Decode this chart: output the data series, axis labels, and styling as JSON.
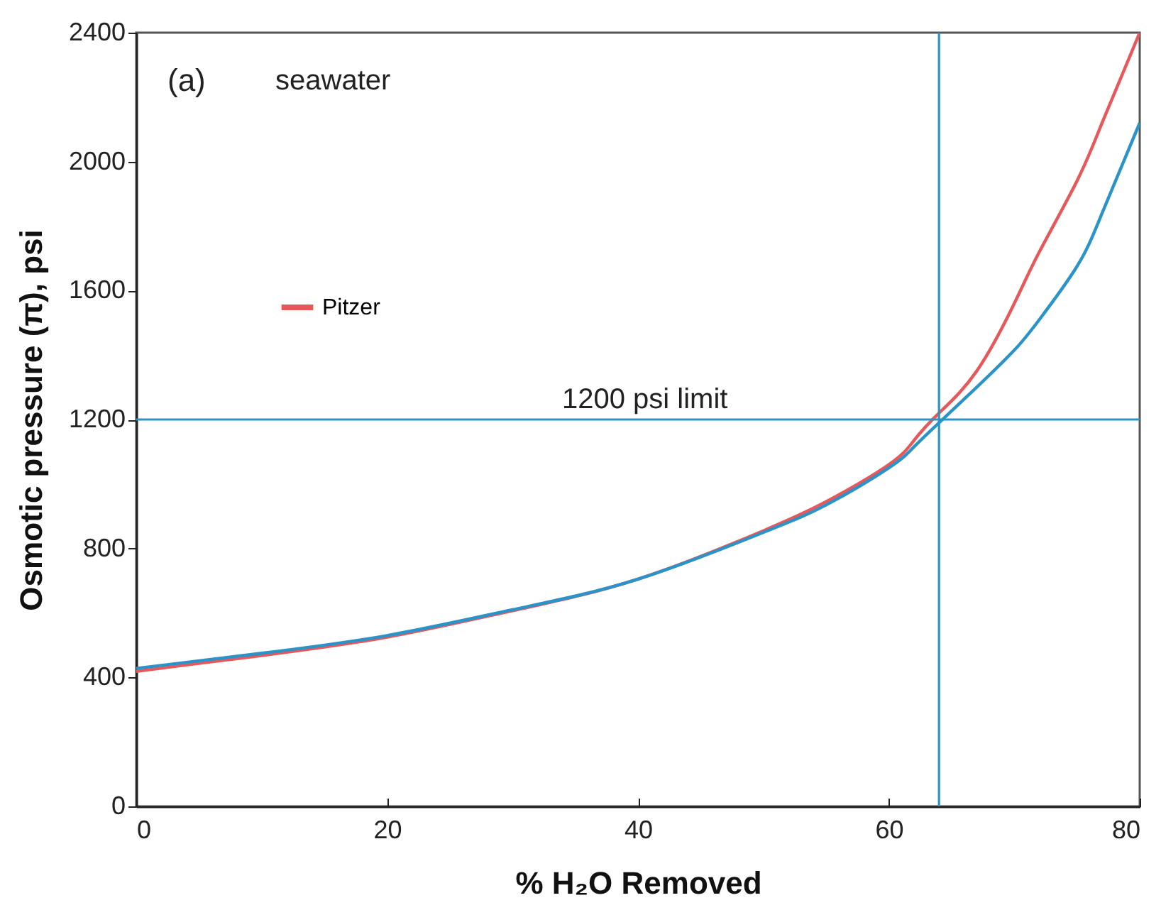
{
  "chart_data": {
    "type": "line",
    "xlabel": "% H₂O Removed",
    "ylabel": "Osmotic pressure (π), psi",
    "annotations": [
      "(a)",
      "seawater"
    ],
    "x": [
      0,
      10,
      20,
      30,
      40,
      50,
      55,
      60,
      62,
      64,
      67,
      70,
      72,
      75,
      77,
      80
    ],
    "series": [
      {
        "name": "Pitzer",
        "color": "#e8575a",
        "values": [
          419,
          468,
          525,
          607,
          705,
          855,
          945,
          1060,
          1135,
          1220,
          1350,
          1560,
          1720,
          1940,
          2120,
          2400
        ]
      },
      {
        "color": "#2a93c8",
        "values": [
          428,
          475,
          530,
          610,
          705,
          850,
          935,
          1050,
          1115,
          1190,
          1300,
          1415,
          1510,
          1675,
          1840,
          2120
        ]
      }
    ],
    "xlim": [
      0,
      80
    ],
    "xticks": [
      0,
      20,
      40,
      60,
      80
    ],
    "ylim": [
      0,
      2400
    ],
    "yticks": [
      0,
      400,
      800,
      1200,
      1600,
      2000,
      2400
    ],
    "ref_lines": [
      {
        "axis": "y",
        "value": 1200,
        "label": "1200 psi limit",
        "color": "#2a93c8"
      },
      {
        "axis": "x",
        "value": 64,
        "color": "#2a93c8"
      }
    ],
    "legend": "left",
    "grid": false
  }
}
